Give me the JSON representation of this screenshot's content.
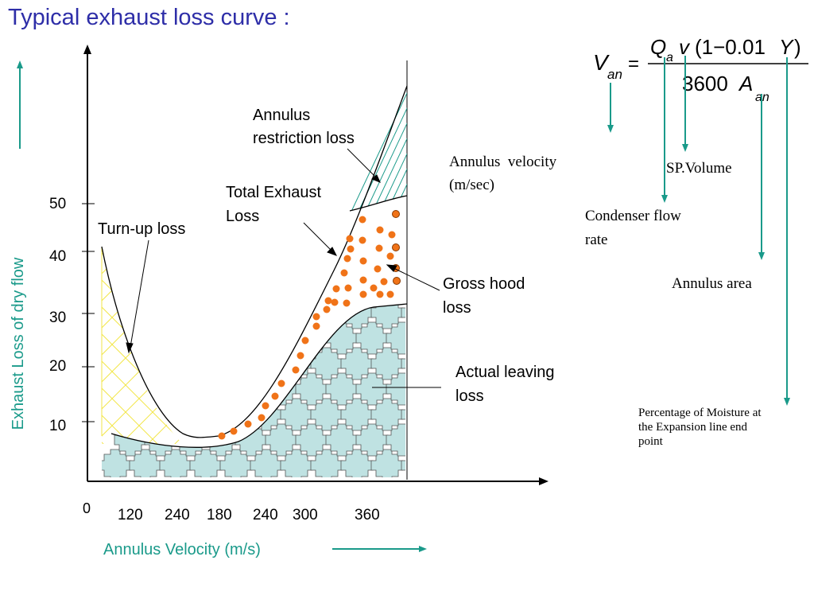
{
  "title": "Typical exhaust loss curve :",
  "colors": {
    "title": "#2e2ea8",
    "teal": "#1a9a8a",
    "orange": "#f07318",
    "yellow": "#f2e64a",
    "tile": "#bfe2e2"
  },
  "axes": {
    "ylabel": "Exhaust Loss of dry flow",
    "xlabel": "Annulus Velocity (m/s)",
    "origin_label": "0",
    "y_ticks": [
      "10",
      "20",
      "30",
      "40",
      "50"
    ],
    "x_ticks": [
      "120",
      "240",
      "180",
      "240",
      "300",
      "360"
    ]
  },
  "labels": {
    "annulus_restriction": [
      "Annulus",
      "restriction loss"
    ],
    "total_exhaust": [
      "Total Exhaust",
      "Loss"
    ],
    "turn_up": "Turn-up loss",
    "gross_hood": [
      "Gross hood",
      "loss"
    ],
    "actual_leaving": [
      "Actual leaving",
      "loss"
    ]
  },
  "formula": {
    "lhs": "V",
    "lhs_sub": "an",
    "equals": "=",
    "num_q": "Q",
    "num_q_sub": "a",
    "num_v": "v",
    "num_paren": "(1−0.01",
    "num_y": "Y",
    "num_close": ")",
    "den_num": "3600",
    "den_a": "A",
    "den_a_sub": "an"
  },
  "legend": {
    "annulus_velocity": [
      "Annulus  velocity",
      "(m/sec)"
    ],
    "sp_volume": "SP.Volume",
    "condenser": [
      "Condenser flow",
      "rate"
    ],
    "annulus_area": "Annulus area",
    "moisture": [
      "Percentage of Moisture at",
      "the Expansion line end",
      "point"
    ]
  }
}
